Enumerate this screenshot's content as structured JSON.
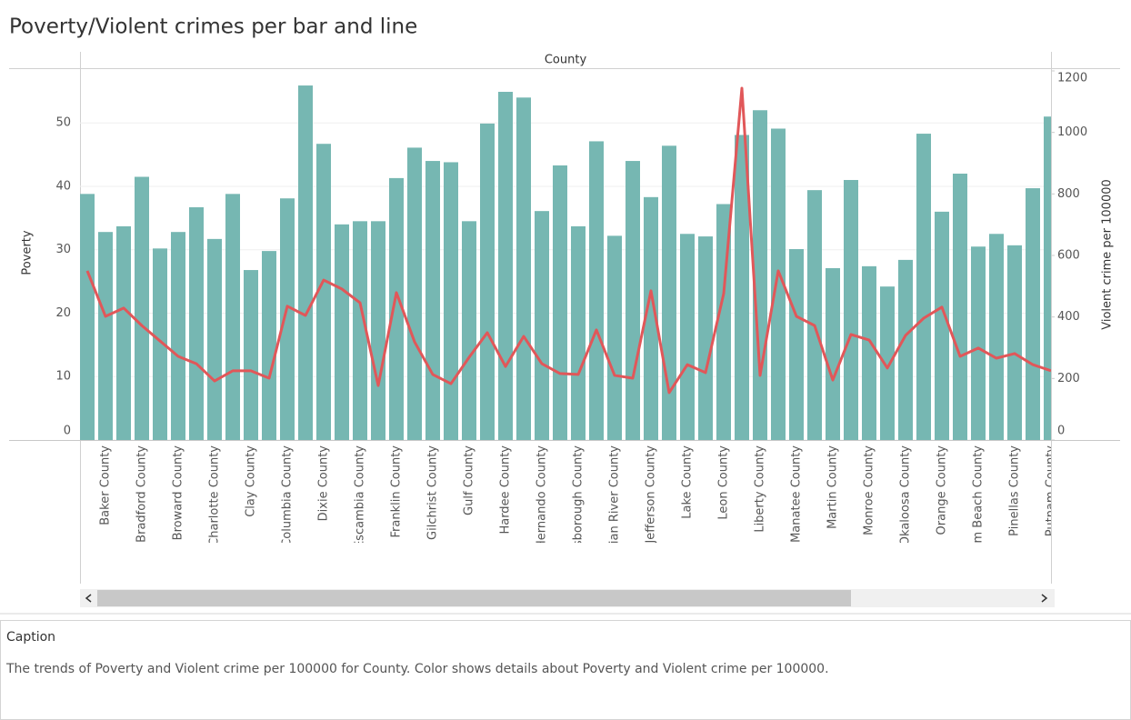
{
  "chart_data": {
    "type": "bar",
    "title": "Poverty/Violent crimes per bar and line",
    "x_label": "County",
    "categories": [
      null,
      "Baker County",
      null,
      "Bradford County",
      null,
      "Broward County",
      null,
      "Charlotte County",
      null,
      "Clay County",
      null,
      "Columbia County",
      null,
      "Dixie County",
      null,
      "Escambia County",
      null,
      "Franklin County",
      null,
      "Gilchrist County",
      null,
      "Gulf County",
      null,
      "Hardee County",
      null,
      "Hernando County",
      null,
      "Hillsborough County",
      null,
      "Indian River County",
      null,
      "Jefferson County",
      null,
      "Lake County",
      null,
      "Leon County",
      null,
      "Liberty County",
      null,
      "Manatee County",
      null,
      "Martin County",
      null,
      "Monroe County",
      null,
      "Okaloosa County",
      null,
      "Orange County",
      null,
      "Palm Beach County",
      null,
      "Pinellas County",
      null,
      "Putnam County"
    ],
    "series": [
      {
        "name": "Poverty",
        "type": "bar",
        "color": "#76b7b2",
        "values": [
          38.8,
          32.8,
          33.7,
          41.5,
          30.2,
          32.8,
          36.7,
          31.7,
          38.8,
          26.8,
          29.8,
          38.1,
          55.9,
          46.7,
          34.0,
          34.5,
          34.5,
          41.3,
          46.1,
          44.0,
          43.8,
          34.5,
          49.9,
          54.9,
          54.0,
          36.1,
          43.3,
          33.7,
          47.1,
          32.2,
          44.0,
          38.3,
          46.4,
          32.5,
          32.1,
          37.2,
          48.1,
          52.0,
          49.1,
          30.1,
          39.4,
          27.1,
          41.0,
          27.4,
          24.2,
          28.4,
          48.3,
          36.0,
          42.0,
          30.5,
          32.5,
          30.7,
          39.7,
          51.0
        ]
      },
      {
        "name": "Violent crime per 100000",
        "type": "line",
        "axis": "y2",
        "color": "#e15759",
        "values": [
          550,
          402,
          429,
          372,
          322,
          272,
          248,
          192,
          225,
          225,
          201,
          435,
          405,
          520,
          491,
          446,
          177,
          479,
          319,
          213,
          183,
          269,
          349,
          239,
          337,
          248,
          216,
          213,
          358,
          210,
          201,
          485,
          154,
          245,
          219,
          476,
          1144,
          210,
          550,
          402,
          372,
          195,
          343,
          325,
          234,
          340,
          396,
          432,
          272,
          299,
          266,
          281,
          245,
          225
        ]
      }
    ],
    "ylim": [
      0,
      58.2
    ],
    "yticks": [
      0,
      10,
      20,
      30,
      40,
      50
    ],
    "y2lim": [
      0,
      1200
    ],
    "y2ticks": [
      0,
      200,
      400,
      600,
      800,
      1000,
      1200
    ],
    "grid": true
  },
  "caption": {
    "title": "Caption",
    "text": "The trends of Poverty and Violent crime per 100000 for County.  Color shows details about Poverty and Violent crime per 100000."
  }
}
